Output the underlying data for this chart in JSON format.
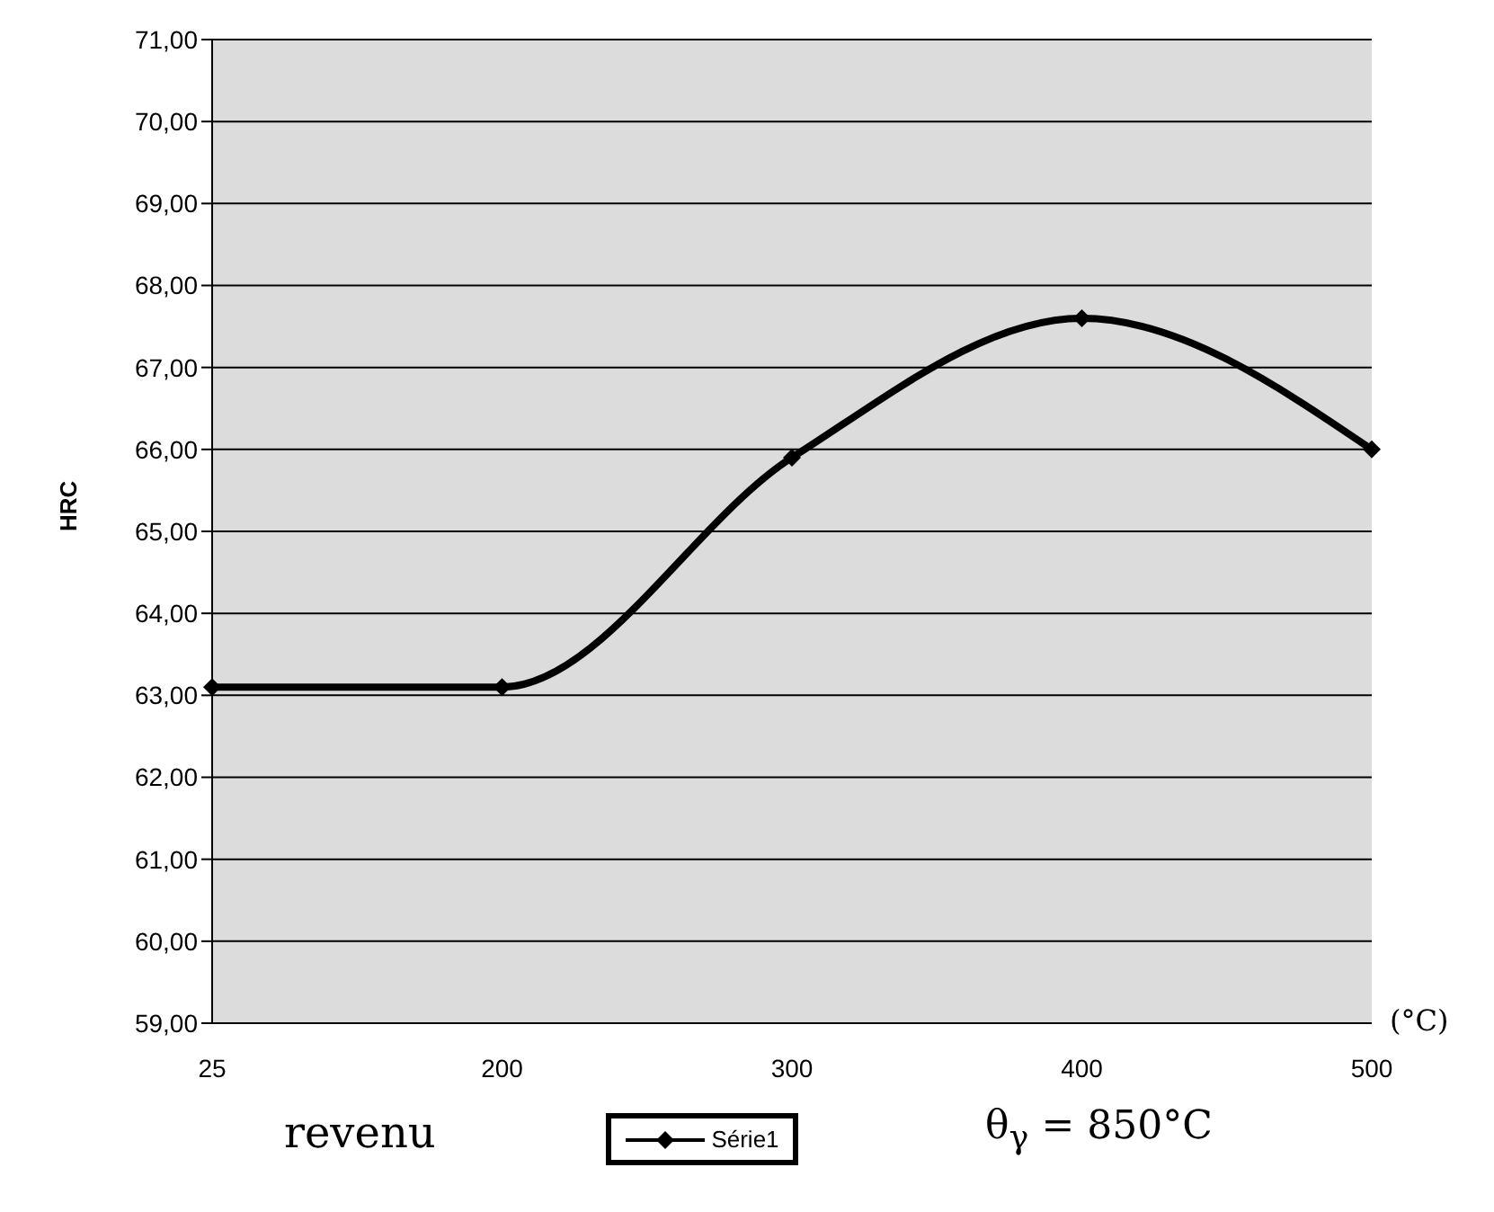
{
  "chart_data": {
    "type": "line",
    "ylabel": "HRC",
    "xlabel": "revenu",
    "annotations": [
      "(°C)",
      "θ$_{γ}$ = 850°C"
    ],
    "categories": [
      "25",
      "200",
      "300",
      "400",
      "500"
    ],
    "series": [
      {
        "name": "Série1",
        "color": "#000000",
        "values": [
          63.1,
          63.1,
          65.9,
          67.6,
          66.0
        ]
      }
    ],
    "ylim": [
      59,
      71
    ],
    "yticks": [
      {
        "value": 59,
        "label": "59,00"
      },
      {
        "value": 60,
        "label": "60,00"
      },
      {
        "value": 61,
        "label": "61,00"
      },
      {
        "value": 62,
        "label": "62,00"
      },
      {
        "value": 63,
        "label": "63,00"
      },
      {
        "value": 64,
        "label": "64,00"
      },
      {
        "value": 65,
        "label": "65,00"
      },
      {
        "value": 66,
        "label": "66,00"
      },
      {
        "value": 67,
        "label": "67,00"
      },
      {
        "value": 68,
        "label": "68,00"
      },
      {
        "value": 69,
        "label": "69,00"
      },
      {
        "value": 70,
        "label": "70,00"
      },
      {
        "value": 71,
        "label": "71,00"
      }
    ],
    "grid": "y",
    "legend": "bottom",
    "marker": "diamond",
    "line_style": "solid"
  }
}
